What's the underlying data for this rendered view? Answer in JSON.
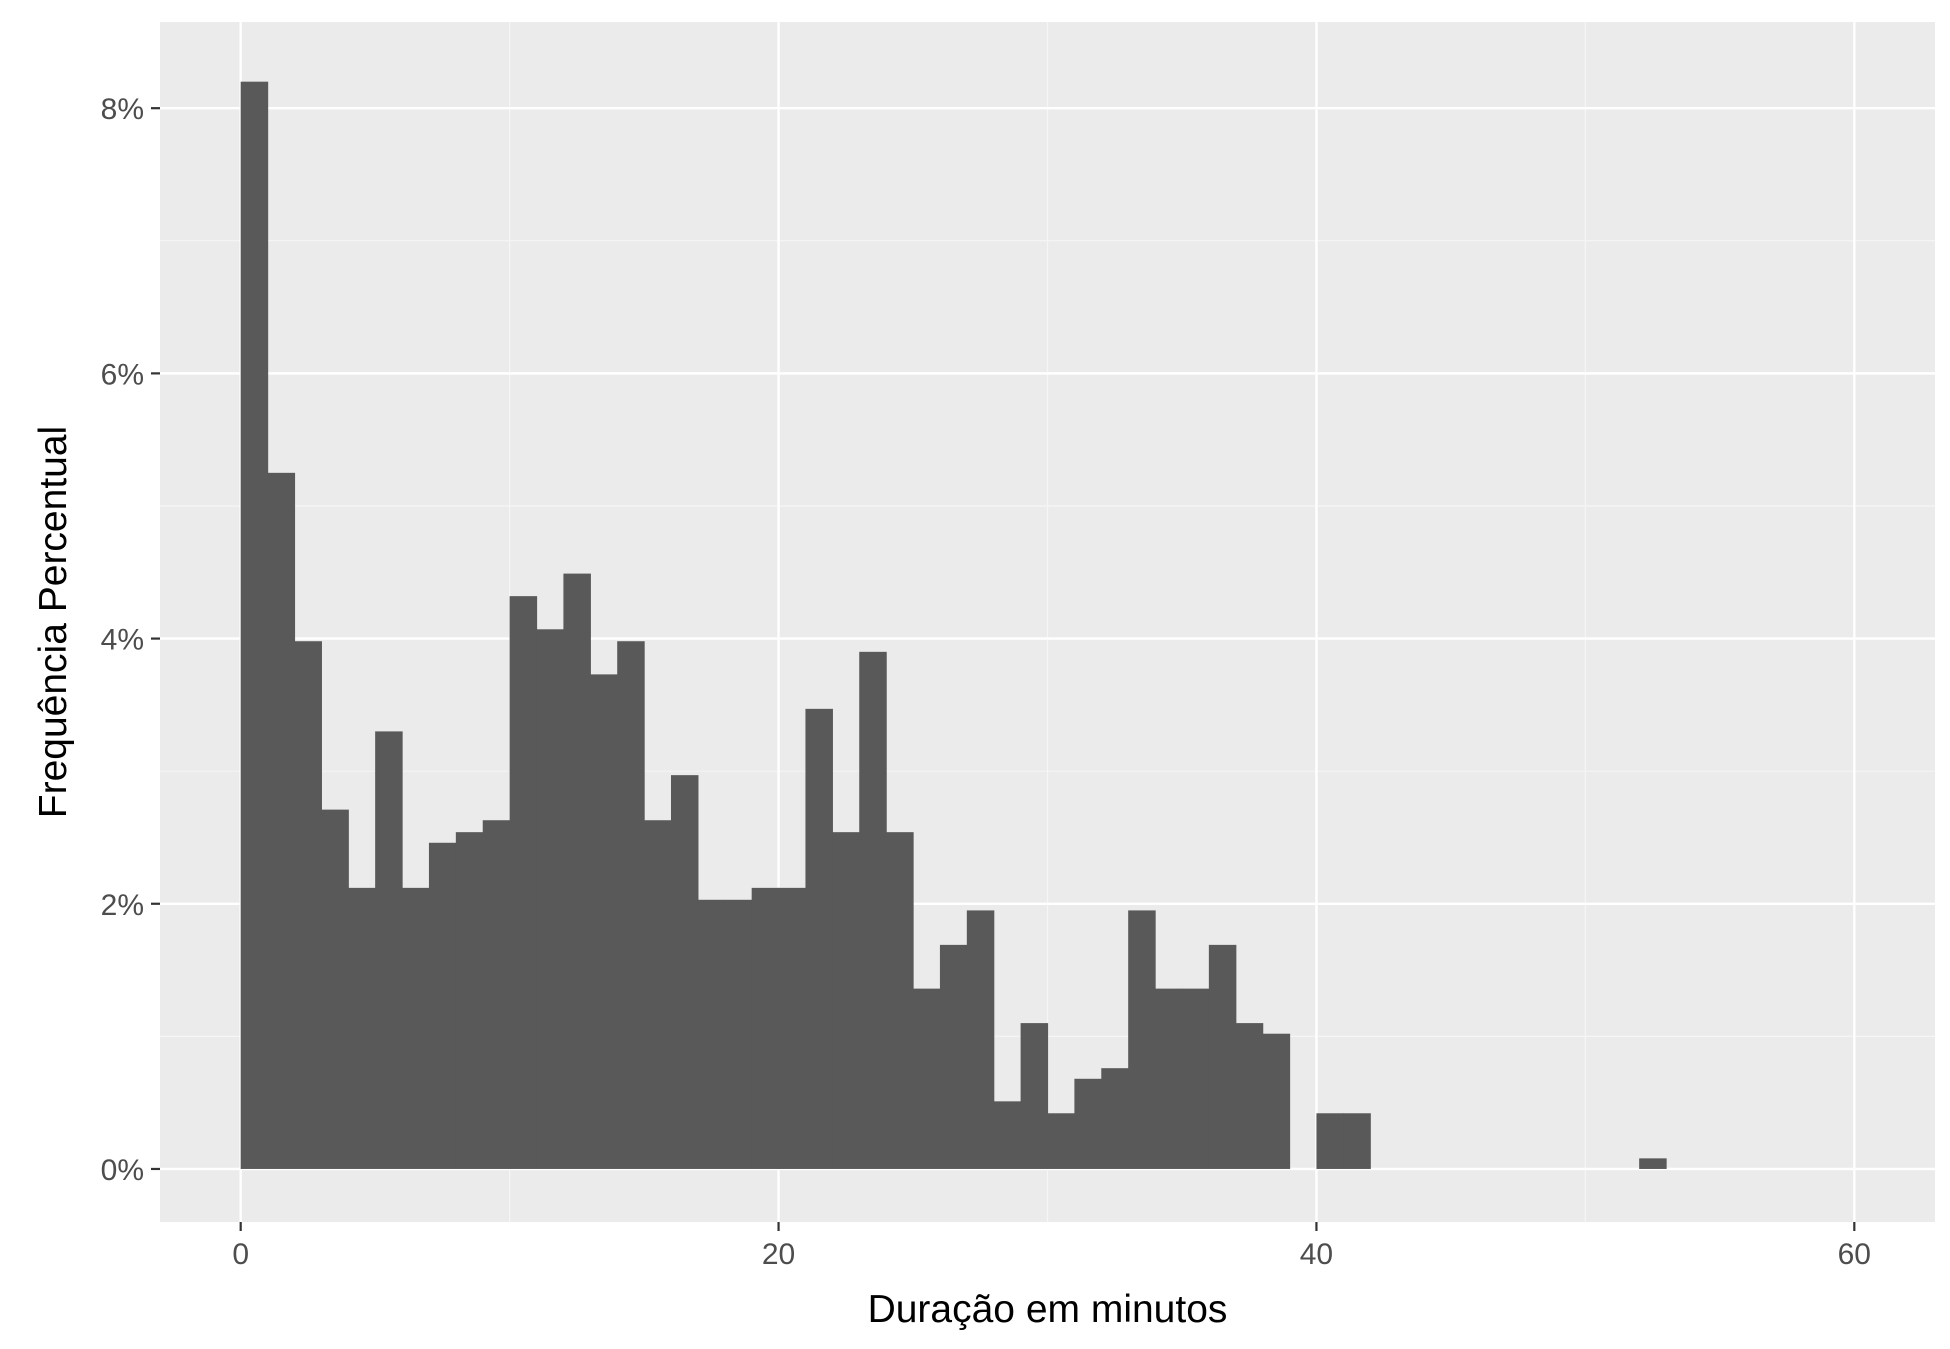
{
  "chart_data": {
    "type": "bar",
    "subtype": "histogram",
    "title": "",
    "xlabel": "Duração em minutos",
    "ylabel": "Frequência Percentual",
    "x_ticks": [
      0,
      20,
      40,
      60
    ],
    "x_tick_labels": [
      "0",
      "20",
      "40",
      "60"
    ],
    "y_ticks": [
      0,
      2,
      4,
      6,
      8
    ],
    "y_tick_labels": [
      "0%",
      "2%",
      "4%",
      "6%",
      "8%"
    ],
    "xlim": [
      -3,
      63
    ],
    "ylim": [
      -0.4,
      8.65
    ],
    "grid": true,
    "bin_width": 1,
    "bins_start": [
      0,
      1,
      2,
      3,
      4,
      5,
      6,
      7,
      8,
      9,
      10,
      11,
      12,
      13,
      14,
      15,
      16,
      17,
      18,
      19,
      20,
      21,
      22,
      23,
      24,
      25,
      26,
      27,
      28,
      29,
      30,
      31,
      32,
      33,
      34,
      35,
      36,
      37,
      38,
      39,
      40,
      41,
      42,
      43,
      44,
      45,
      46,
      47,
      48,
      49,
      50,
      51,
      52
    ],
    "values": [
      8.2,
      5.25,
      3.98,
      2.71,
      2.12,
      3.3,
      2.12,
      2.46,
      2.54,
      2.63,
      4.32,
      4.07,
      4.49,
      3.73,
      3.98,
      2.63,
      2.97,
      2.03,
      2.03,
      2.12,
      2.12,
      3.47,
      2.54,
      3.9,
      2.54,
      1.36,
      1.69,
      1.95,
      0.51,
      1.1,
      0.42,
      0.68,
      0.76,
      1.95,
      1.36,
      1.36,
      1.69,
      1.1,
      1.02,
      0,
      0.42,
      0.42,
      0,
      0,
      0,
      0,
      0,
      0,
      0,
      0,
      0,
      0,
      0.08
    ]
  },
  "colors": {
    "panel_background": "#ebebeb",
    "grid_major": "#ffffff",
    "grid_minor": "#f5f5f5",
    "bar_fill": "#595959",
    "tick_text": "#4d4d4d",
    "axis_title_text": "#000000"
  }
}
